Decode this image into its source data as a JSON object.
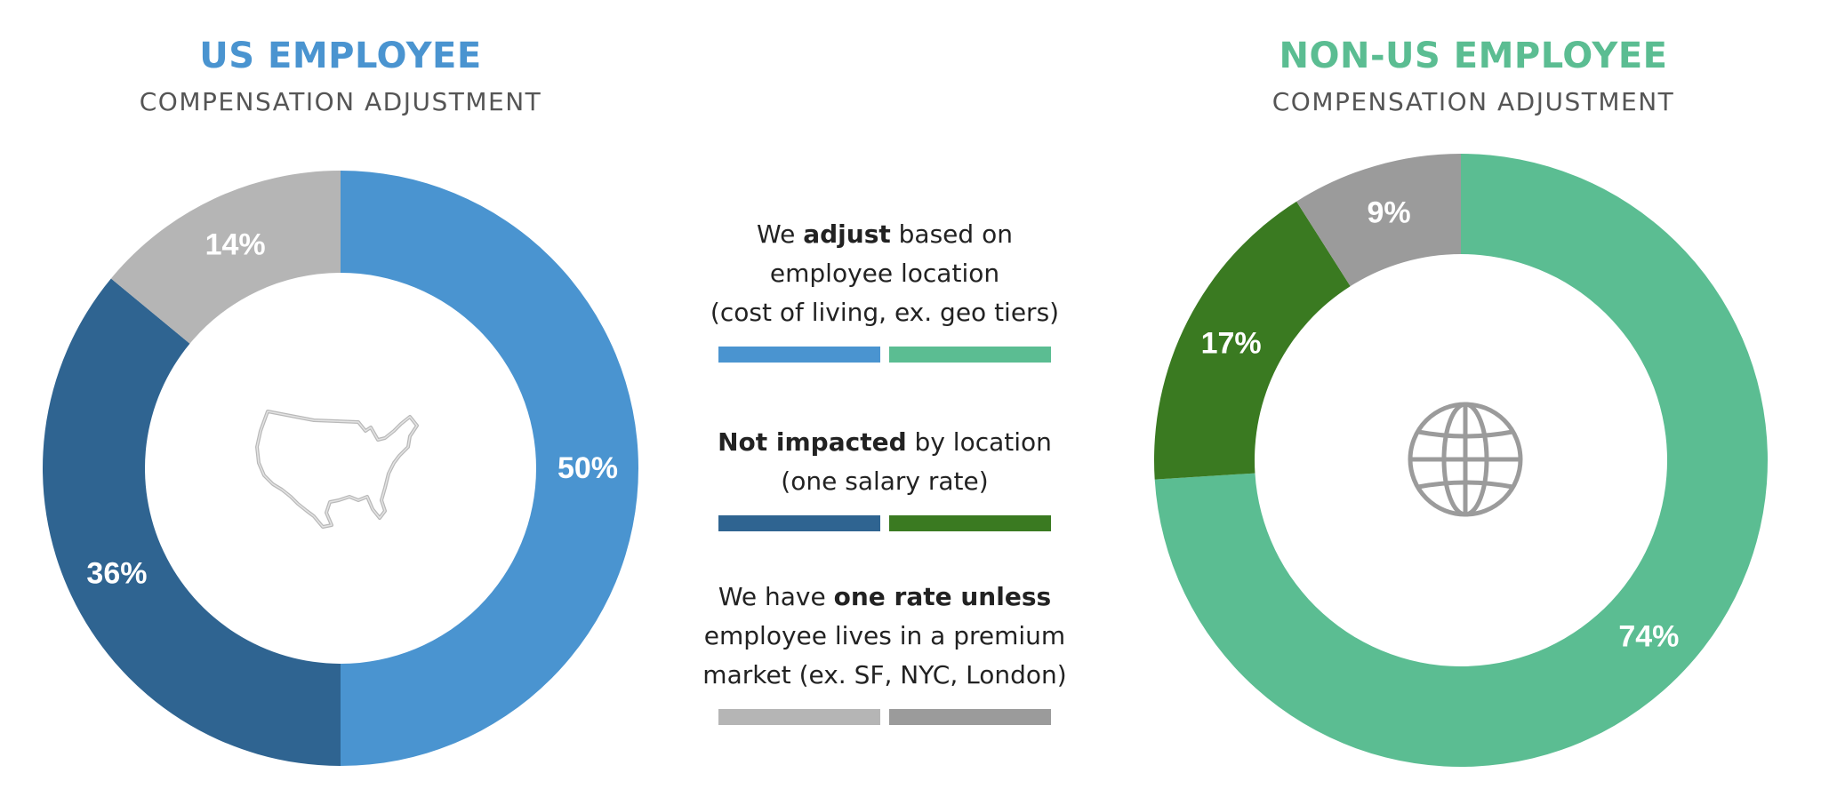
{
  "us": {
    "title": "US EMPLOYEE",
    "subtitle": "COMPENSATION ADJUSTMENT",
    "title_color": "#4a94d0"
  },
  "non_us": {
    "title": "NON-US EMPLOYEE",
    "subtitle": "COMPENSATION ADJUSTMENT",
    "title_color": "#5bbd92"
  },
  "legend": {
    "adjust": {
      "pre": "We ",
      "bold": "adjust",
      "post": " based on",
      "line2": "employee location",
      "line3": "(cost of living, ex. geo tiers)"
    },
    "not_impacted": {
      "bold": "Not impacted",
      "post": " by location",
      "line2": "(one salary rate)"
    },
    "premium": {
      "pre": "We have ",
      "bold": "one rate unless",
      "line2": "employee lives in a premium",
      "line3": "market (ex. SF, NYC, London)"
    }
  },
  "icons": {
    "us_center": "usa-map-icon",
    "non_us_center": "globe-icon"
  },
  "chart_data": [
    {
      "type": "pie",
      "donut": true,
      "title": "US EMPLOYEE",
      "subtitle": "COMPENSATION ADJUSTMENT",
      "categories": [
        "adjust based on employee location",
        "not impacted by location",
        "one rate unless premium market"
      ],
      "values": [
        50,
        36,
        14
      ],
      "labels": [
        "50%",
        "36%",
        "14%"
      ],
      "colors": [
        "#4a94d0",
        "#2f6491",
        "#b5b5b5"
      ]
    },
    {
      "type": "pie",
      "donut": true,
      "title": "NON-US EMPLOYEE",
      "subtitle": "COMPENSATION ADJUSTMENT",
      "categories": [
        "adjust based on employee location",
        "not impacted by location",
        "one rate unless premium market"
      ],
      "values": [
        74,
        17,
        9
      ],
      "labels": [
        "74%",
        "17%",
        "9%"
      ],
      "colors": [
        "#5bbd92",
        "#3a7a21",
        "#9b9b9b"
      ]
    }
  ]
}
